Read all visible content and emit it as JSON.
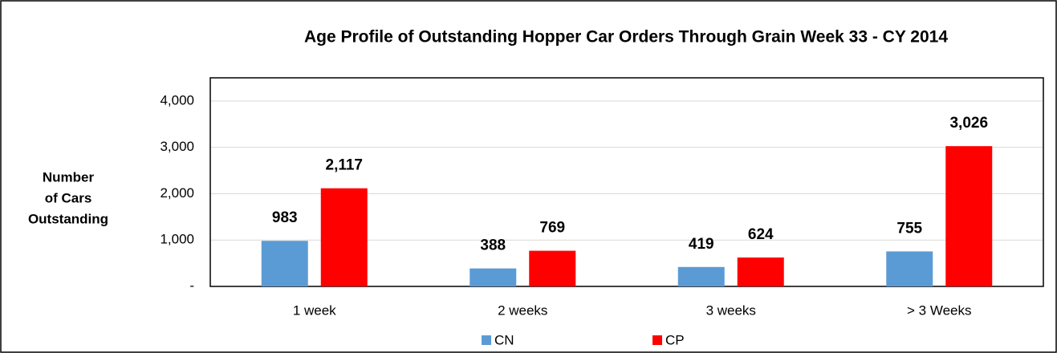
{
  "chart_data": {
    "type": "bar",
    "title": "Age Profile of Outstanding Hopper Car Orders Through Grain Week 33 - CY 2014",
    "y_label": [
      "Number",
      "of Cars",
      "Outstanding"
    ],
    "categories": [
      "1 week",
      "2 weeks",
      "3 weeks",
      "> 3 Weeks"
    ],
    "series": [
      {
        "name": "CN",
        "color": "#5b9bd5",
        "values": [
          983,
          388,
          419,
          755
        ],
        "value_labels": [
          "983",
          "388",
          "419",
          "755"
        ]
      },
      {
        "name": "CP",
        "color": "#ff0000",
        "values": [
          2117,
          769,
          624,
          3026
        ],
        "value_labels": [
          "2,117",
          "769",
          "624",
          "3,026"
        ]
      }
    ],
    "ylim": [
      0,
      4500
    ],
    "yticks": [
      {
        "value": 0,
        "label": "-"
      },
      {
        "value": 1000,
        "label": "1,000"
      },
      {
        "value": 2000,
        "label": "2,000"
      },
      {
        "value": 3000,
        "label": "3,000"
      },
      {
        "value": 4000,
        "label": "4,000"
      }
    ],
    "grid": true,
    "legend": "bottom"
  }
}
